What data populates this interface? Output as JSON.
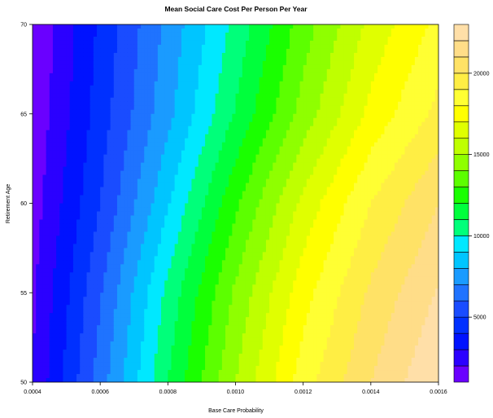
{
  "chart_data": {
    "type": "heatmap",
    "subtype": "filled-contour",
    "title": "Mean Social Care Cost Per Person Per Year",
    "xlabel": "Base Care Probability",
    "ylabel": "Retirement Age",
    "xlim": [
      0.0004,
      0.0016
    ],
    "ylim": [
      50,
      70
    ],
    "x_ticks": [
      "0.0004",
      "0.0006",
      "0.0008",
      "0.0010",
      "0.0012",
      "0.0014",
      "0.0016"
    ],
    "y_ticks": [
      "50",
      "55",
      "60",
      "65",
      "70"
    ],
    "colorbar": {
      "min": 1000,
      "max": 23000,
      "step": 1000,
      "tick_labels": [
        "5000",
        "10000",
        "15000",
        "20000"
      ],
      "colors": [
        "#6a00ff",
        "#2b00ff",
        "#0012ff",
        "#0030ff",
        "#1a4cff",
        "#1f73ff",
        "#1a9bff",
        "#00c5ff",
        "#00e8ff",
        "#00ff7a",
        "#00ff3c",
        "#1aff00",
        "#5cff00",
        "#8fff00",
        "#bfff00",
        "#e0ff00",
        "#ffff00",
        "#ffff33",
        "#ffee44",
        "#ffe266",
        "#ffdd88",
        "#ffdfa8"
      ]
    },
    "x": [
      0.0004,
      0.0006,
      0.0008,
      0.001,
      0.0012,
      0.0014,
      0.0016
    ],
    "y": [
      50,
      55,
      60,
      65,
      70
    ],
    "z": [
      [
        2000,
        6500,
        11000,
        15000,
        18500,
        21000,
        23000
      ],
      [
        1800,
        5900,
        10300,
        14200,
        17600,
        20200,
        22100
      ],
      [
        1500,
        5000,
        8900,
        12800,
        16300,
        19000,
        21000
      ],
      [
        1200,
        4500,
        7700,
        11100,
        14400,
        17300,
        19300
      ],
      [
        1000,
        4200,
        7300,
        10300,
        13500,
        16300,
        18300
      ]
    ]
  }
}
